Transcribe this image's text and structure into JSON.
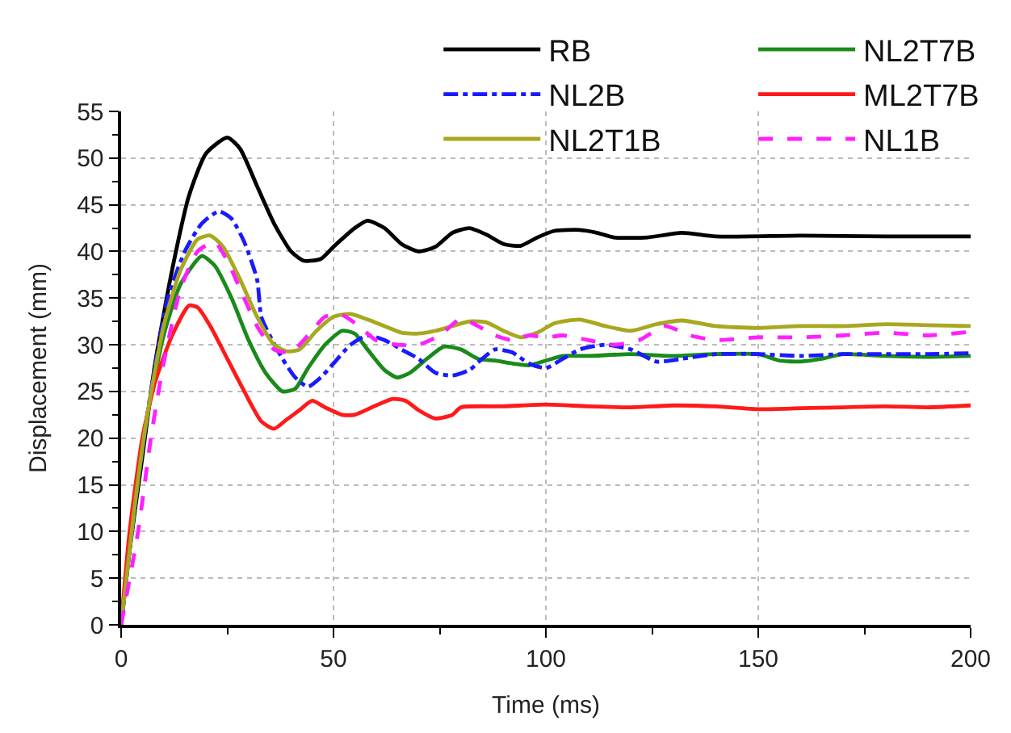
{
  "chart_data": {
    "type": "line",
    "xlabel": "Time (ms)",
    "ylabel": "Displacement (mm)",
    "xlim": [
      0,
      200
    ],
    "xticks": [
      0,
      50,
      100,
      150,
      200
    ],
    "ylim": [
      0,
      55
    ],
    "yticks": [
      0,
      5,
      10,
      15,
      20,
      25,
      30,
      35,
      40,
      45,
      50,
      55
    ],
    "grid": true,
    "legend": "top right",
    "marker": "none",
    "series": [
      {
        "name": "RB",
        "color": "#000000",
        "line_style": "solid",
        "x": [
          0,
          2,
          5,
          8,
          12,
          16,
          20,
          25,
          28,
          32,
          36,
          40,
          43,
          47,
          50,
          55,
          58,
          62,
          66,
          70,
          74,
          78,
          82,
          86,
          90,
          94,
          98,
          102,
          108,
          112,
          116,
          124,
          132,
          140,
          160,
          180,
          200
        ],
        "values": [
          0,
          8,
          18,
          28,
          38,
          46,
          50.5,
          52.2,
          51,
          47,
          43,
          40,
          39,
          39.2,
          40.5,
          42.5,
          43.3,
          42.5,
          40.8,
          40,
          40.5,
          42,
          42.5,
          41.8,
          40.8,
          40.6,
          41.5,
          42.2,
          42.3,
          42,
          41.5,
          41.5,
          42,
          41.6,
          41.7,
          41.6,
          41.6
        ]
      },
      {
        "name": "NL2T7B",
        "color": "#1a8a1a",
        "line_style": "solid",
        "x": [
          0,
          3,
          6,
          10,
          14,
          19,
          22,
          26,
          30,
          34,
          38,
          41,
          44,
          48,
          52,
          55,
          58,
          62,
          65,
          68,
          72,
          76,
          80,
          84,
          88,
          92,
          96,
          100,
          104,
          110,
          120,
          130,
          140,
          150,
          155,
          160,
          165,
          170,
          180,
          190,
          200
        ],
        "values": [
          0,
          12,
          22,
          31,
          36.5,
          39.5,
          38.5,
          35,
          30.5,
          27,
          25,
          25.3,
          27.5,
          30,
          31.5,
          31.2,
          29.5,
          27.3,
          26.5,
          27,
          28.5,
          29.8,
          29.5,
          28.5,
          28.3,
          28,
          27.8,
          28.3,
          28.8,
          28.8,
          29,
          28.8,
          29,
          29,
          28.3,
          28.2,
          28.5,
          29,
          28.8,
          28.7,
          28.8
        ]
      },
      {
        "name": "NL2B",
        "color": "#1a1aff",
        "line_style": "dashdot",
        "x": [
          0,
          3,
          7,
          11,
          15,
          19,
          23,
          26,
          29,
          32,
          33,
          35,
          38,
          41,
          44,
          47,
          50,
          54,
          58,
          62,
          66,
          70,
          74,
          78,
          82,
          85,
          88,
          92,
          96,
          100,
          104,
          108,
          114,
          120,
          126,
          132,
          140,
          150,
          160,
          170,
          180,
          190,
          200
        ],
        "values": [
          0,
          12,
          25,
          35,
          40,
          43,
          44.3,
          43.5,
          41,
          37,
          33,
          31,
          28.5,
          26.5,
          25.5,
          26.5,
          28,
          30,
          31,
          30.5,
          29.5,
          28.5,
          27,
          26.7,
          27.3,
          28.5,
          29.5,
          29.2,
          28,
          27.5,
          28.5,
          29.5,
          30,
          29.5,
          28.2,
          28.5,
          29,
          29,
          28.8,
          29,
          29,
          29,
          29.1
        ]
      },
      {
        "name": "ML2T7B",
        "color": "#ff1a1a",
        "line_style": "solid",
        "x": [
          0,
          2,
          5,
          8,
          12,
          16,
          18,
          21,
          25,
          29,
          33,
          36,
          39,
          42,
          45,
          48,
          52,
          55,
          60,
          64,
          67,
          70,
          74,
          78,
          80,
          90,
          100,
          110,
          120,
          130,
          140,
          150,
          160,
          170,
          180,
          190,
          200
        ],
        "values": [
          0,
          10,
          20,
          26,
          31,
          34.2,
          34,
          32,
          28.5,
          25,
          21.8,
          21,
          22,
          23,
          24,
          23.3,
          22.5,
          22.5,
          23.5,
          24.2,
          24,
          23,
          22.1,
          22.5,
          23.3,
          23.4,
          23.6,
          23.4,
          23.3,
          23.5,
          23.4,
          23.1,
          23.2,
          23.3,
          23.4,
          23.3,
          23.5
        ]
      },
      {
        "name": "NL2T1B",
        "color": "#a8a820",
        "line_style": "solid",
        "x": [
          0,
          3,
          6,
          10,
          14,
          18,
          21,
          24,
          28,
          32,
          36,
          39,
          42,
          46,
          50,
          54,
          58,
          62,
          66,
          70,
          74,
          78,
          82,
          86,
          90,
          94,
          98,
          102,
          108,
          114,
          120,
          126,
          132,
          140,
          150,
          160,
          170,
          180,
          190,
          200
        ],
        "values": [
          0,
          12,
          22,
          32,
          38,
          41.3,
          41.7,
          40.5,
          37,
          33,
          30,
          29.3,
          29.5,
          31.5,
          33,
          33.3,
          32.7,
          32,
          31.3,
          31.2,
          31.5,
          32,
          32.5,
          32.4,
          31.5,
          30.8,
          31.3,
          32.3,
          32.7,
          32,
          31.5,
          32.2,
          32.6,
          32,
          31.8,
          32,
          32,
          32.2,
          32.1,
          32
        ]
      },
      {
        "name": "NL1B",
        "color": "#ff20ff",
        "line_style": "dashed",
        "x": [
          0,
          4,
          7,
          10,
          14,
          18,
          22,
          25,
          28,
          32,
          36,
          40,
          44,
          48,
          52,
          56,
          60,
          65,
          70,
          75,
          80,
          84,
          88,
          92,
          96,
          100,
          104,
          110,
          116,
          122,
          128,
          134,
          140,
          150,
          160,
          170,
          180,
          190,
          200
        ],
        "values": [
          0,
          10,
          20,
          28,
          36,
          40,
          41,
          39,
          36,
          32,
          29.5,
          29.2,
          31,
          33,
          33.2,
          32,
          30.5,
          30,
          30,
          31,
          32.8,
          32,
          31,
          30.5,
          31,
          30.8,
          31,
          30.5,
          30,
          30.5,
          32,
          31,
          30.5,
          30.8,
          30.8,
          31,
          31.3,
          31,
          31.4
        ]
      }
    ]
  }
}
